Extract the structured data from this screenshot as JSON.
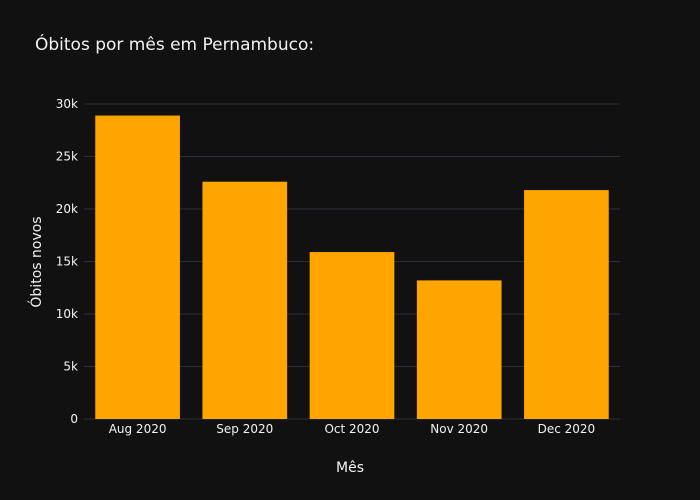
{
  "chart_data": {
    "type": "bar",
    "title": "Óbitos por mês em Pernambuco:",
    "xlabel": "Mês",
    "ylabel": "Óbitos novos",
    "categories": [
      "Aug 2020",
      "Sep 2020",
      "Oct 2020",
      "Nov 2020",
      "Dec 2020"
    ],
    "values": [
      28900,
      22600,
      15900,
      13200,
      21800
    ],
    "ylim": [
      0,
      30000
    ],
    "y_ticks": [
      0,
      5000,
      10000,
      15000,
      20000,
      25000,
      30000
    ],
    "y_tick_labels": [
      "0",
      "5k",
      "10k",
      "15k",
      "20k",
      "25k",
      "30k"
    ],
    "grid": true,
    "colors": {
      "background": "#111111",
      "bar": "#FFA500",
      "grid": "#2b2f3a",
      "text": "#f2f2f2"
    }
  }
}
